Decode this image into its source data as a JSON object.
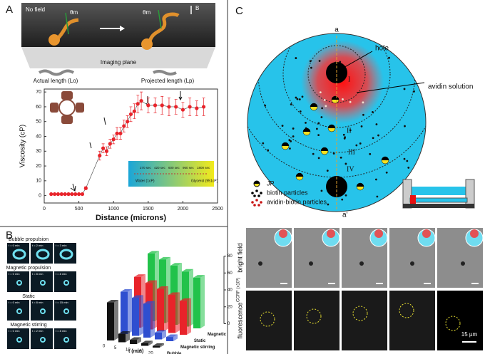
{
  "panels": {
    "a": "A",
    "b": "B",
    "c": "C"
  },
  "panel_a": {
    "no_field": "No field",
    "theta_left": "θm",
    "theta_right": "θm",
    "field": "B",
    "imaging_plane": "Imaging plane",
    "actual_length": "Actual length (Lo)",
    "projected_length": "Projected length (Lp)",
    "inset": {
      "water": "Water (1cP)",
      "glycerol": "Glycerol (951cP)",
      "times": [
        "270 sec",
        "420 sec",
        "600 sec",
        "960 sec",
        "1800 sec"
      ]
    }
  },
  "chart_data": [
    {
      "type": "scatter",
      "x_label": "Distance (microns)",
      "y_label": "Viscosity (cP)",
      "color": "#e8232a",
      "x": [
        100,
        150,
        200,
        250,
        300,
        350,
        400,
        450,
        500,
        550,
        600,
        800,
        850,
        900,
        950,
        1000,
        1050,
        1100,
        1150,
        1200,
        1250,
        1300,
        1350,
        1400,
        1500,
        1600,
        1700,
        1800,
        1900,
        2000,
        2100,
        2200,
        2300
      ],
      "values": [
        1,
        1,
        1,
        1,
        1,
        1,
        1,
        1,
        1,
        1,
        5,
        27,
        32,
        30,
        35,
        38,
        42,
        42,
        47,
        50,
        55,
        57,
        62,
        64,
        61,
        61,
        61,
        60,
        60,
        58,
        60,
        59,
        60
      ],
      "errors": [
        0,
        0,
        0,
        0,
        0,
        0,
        0,
        0,
        0,
        0,
        1,
        3,
        3,
        3,
        3,
        3,
        4,
        4,
        4,
        4,
        5,
        5,
        6,
        6,
        5,
        5,
        6,
        6,
        5,
        5,
        6,
        5,
        6
      ],
      "xlim": [
        0,
        2500
      ],
      "xticks": [
        0,
        500,
        1000,
        1500,
        2000,
        2500
      ],
      "ylim": [
        -5,
        72
      ],
      "yticks": [
        0,
        10,
        20,
        30,
        40,
        50,
        60,
        70
      ]
    },
    {
      "type": "bar3d",
      "x_label": "t (min)",
      "z_label": "CCRF (x10³)",
      "categories": [
        0,
        5,
        10,
        15,
        20
      ],
      "zlim": [
        0,
        80
      ],
      "zticks": [
        0,
        20,
        40,
        60,
        80
      ],
      "series": [
        {
          "name": "Bubble",
          "color": "#111111",
          "values": [
            45,
            10,
            5,
            3,
            2
          ]
        },
        {
          "name": "Magnetic stirring",
          "color": "#2f4fd0",
          "values": [
            50,
            45,
            40,
            8,
            5
          ]
        },
        {
          "name": "Static",
          "color": "#e8232a",
          "values": [
            60,
            55,
            50,
            45,
            40
          ]
        },
        {
          "name": "Magnetic",
          "color": "#22c24a",
          "values": [
            80,
            75,
            70,
            65,
            60
          ]
        }
      ]
    }
  ],
  "panel_b": {
    "rows": [
      {
        "title": "Bubble propulsion",
        "frames": [
          "t = 0 min",
          "t = 2 min",
          "t = 3 min"
        ]
      },
      {
        "title": "Magnetic propulsion",
        "frames": [
          "t = 0 min",
          "t = 8 min",
          "t = 8 min"
        ]
      },
      {
        "title": "Static",
        "frames": [
          "t = 0 min",
          "t = 8 min",
          "t = 15 min"
        ]
      },
      {
        "title": "Magnetic stirring",
        "frames": [
          "t = 0 min",
          "t = 2 min",
          "t = 8 min"
        ]
      }
    ]
  },
  "panel_c": {
    "axis_top": "a",
    "axis_bottom": "a'",
    "hole": "hole",
    "avidin": "avidin solution",
    "zones": [
      "I",
      "II",
      "III",
      "IV"
    ],
    "legend": [
      "JP",
      "biotin particles",
      "avidin-biotin particles"
    ],
    "bright_field": "bright field",
    "fluorescence": "fluorescence",
    "scale": "15 µm"
  }
}
